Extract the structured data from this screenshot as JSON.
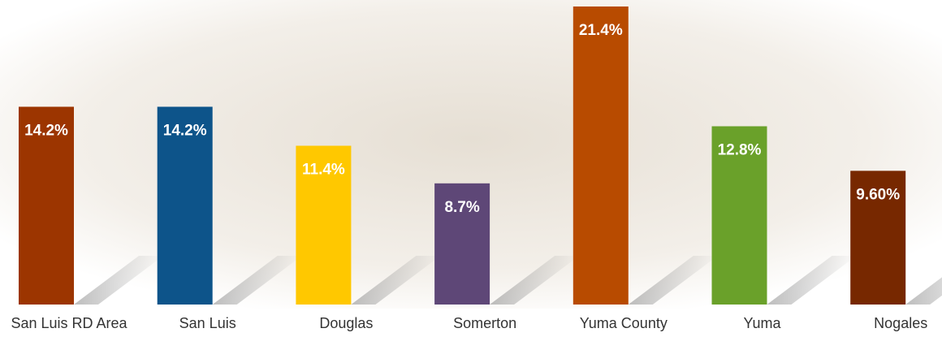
{
  "chart_data": {
    "type": "bar",
    "categories": [
      "San Luis RD Area",
      "San Luis",
      "Douglas",
      "Somerton",
      "Yuma County",
      "Yuma",
      "Nogales"
    ],
    "values": [
      14.2,
      14.2,
      11.4,
      8.7,
      21.4,
      12.8,
      9.6
    ],
    "value_labels": [
      "14.2%",
      "14.2%",
      "11.4%",
      "8.7%",
      "21.4%",
      "12.8%",
      "9.60%"
    ],
    "colors": [
      "#9c3500",
      "#0d548a",
      "#ffc800",
      "#5e4777",
      "#b84b00",
      "#6aa12a",
      "#772800"
    ]
  }
}
